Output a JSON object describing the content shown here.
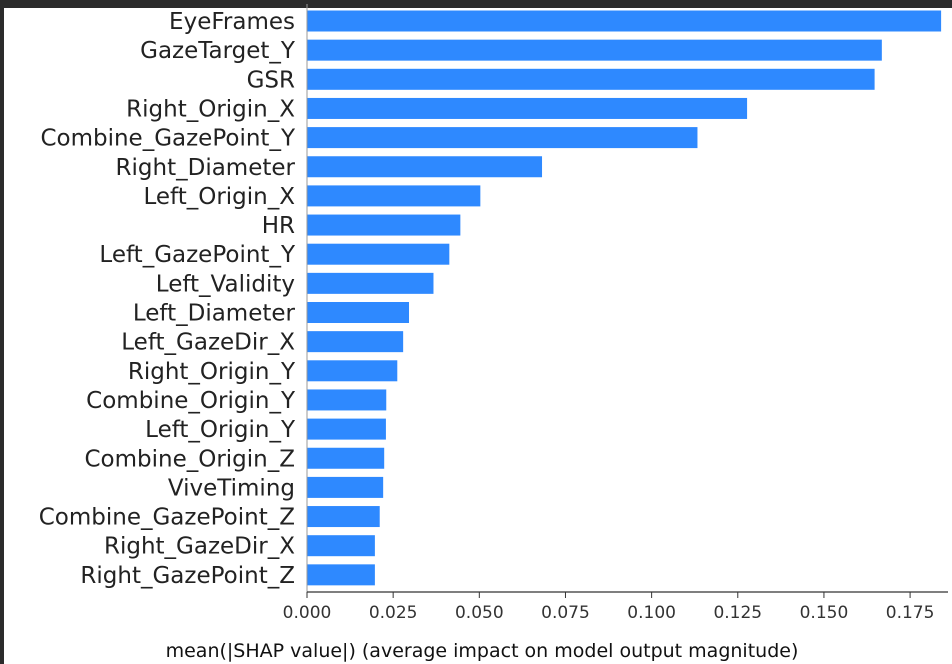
{
  "chart_data": {
    "type": "bar",
    "orientation": "horizontal",
    "categories": [
      "EyeFrames",
      "GazeTarget_Y",
      "GSR",
      "Right_Origin_X",
      "Combine_GazePoint_Y",
      "Right_Diameter",
      "Left_Origin_X",
      "HR",
      "Left_GazePoint_Y",
      "Left_Validity",
      "Left_Diameter",
      "Left_GazeDir_X",
      "Right_Origin_Y",
      "Combine_Origin_Y",
      "Left_Origin_Y",
      "Combine_Origin_Z",
      "ViveTiming",
      "Combine_GazePoint_Z",
      "Right_GazeDir_X",
      "Right_GazePoint_Z"
    ],
    "values": [
      0.184,
      0.1668,
      0.1647,
      0.1277,
      0.1133,
      0.0682,
      0.0503,
      0.0445,
      0.0413,
      0.0367,
      0.0296,
      0.0279,
      0.0262,
      0.023,
      0.0229,
      0.0224,
      0.0221,
      0.0211,
      0.0197,
      0.0197
    ],
    "xlabel": "mean(|SHAP value|) (average impact on model output magnitude)",
    "ylabel": "",
    "title": "",
    "xlim": [
      0,
      0.186
    ],
    "xticks": [
      0.0,
      0.025,
      0.05,
      0.075,
      0.1,
      0.125,
      0.15,
      0.175
    ],
    "xtick_labels": [
      "0.000",
      "0.025",
      "0.050",
      "0.075",
      "0.100",
      "0.125",
      "0.150",
      "0.175"
    ],
    "bar_color": "#2e89ff",
    "grid": false,
    "legend": "none"
  }
}
